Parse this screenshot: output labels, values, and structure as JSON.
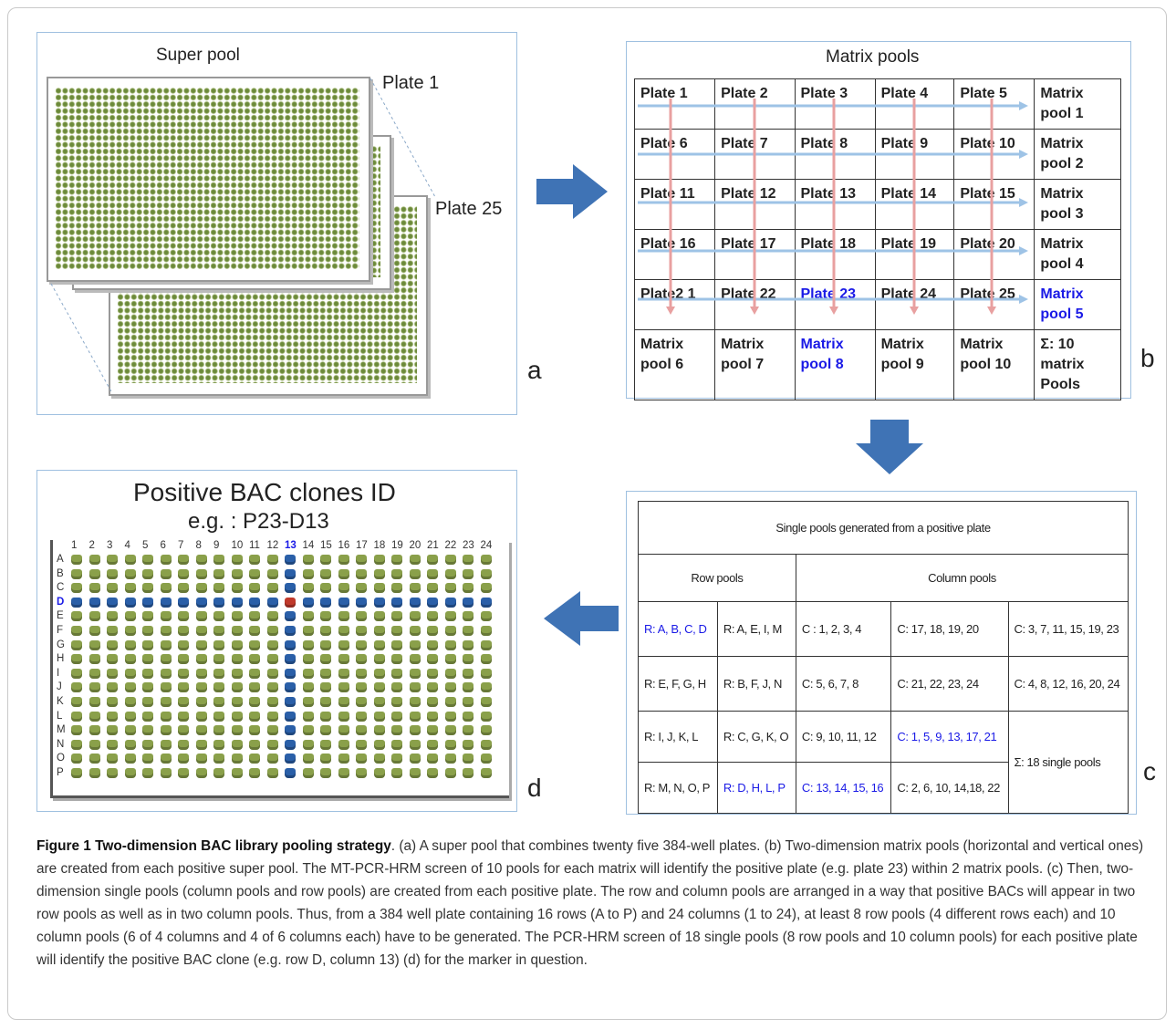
{
  "panel_a": {
    "title": "Super pool",
    "plate_first": "Plate 1",
    "plate_last": "Plate 25",
    "letter": "a"
  },
  "panel_b": {
    "title": "Matrix pools",
    "letter": "b",
    "rows": [
      [
        "Plate 1",
        "Plate 2",
        "Plate 3",
        "Plate 4",
        "Plate 5",
        "Matrix pool 1"
      ],
      [
        "Plate 6",
        "Plate 7",
        "Plate 8",
        "Plate 9",
        "Plate 10",
        "Matrix pool 2"
      ],
      [
        "Plate 11",
        "Plate 12",
        "Plate 13",
        "Plate 14",
        "Plate 15",
        "Matrix pool 3"
      ],
      [
        "Plate 16",
        "Plate 17",
        "Plate 18",
        "Plate 19",
        "Plate 20",
        "Matrix pool 4"
      ],
      [
        "Plate2 1",
        "Plate 22",
        "Plate 23",
        "Plate 24",
        "Plate 25",
        "Matrix pool 5"
      ],
      [
        "Matrix pool 6",
        "Matrix pool 7",
        "Matrix pool 8",
        "Matrix pool 9",
        "Matrix pool 10",
        "Σ: 10 matrix Pools"
      ]
    ],
    "highlight_color": "#1a1ae6"
  },
  "panel_c": {
    "title": "Single pools generated from a positive plate",
    "letter": "c",
    "row_pools_header": "Row pools",
    "column_pools_header": "Column pools",
    "rows": [
      [
        "R: A, B, C, D",
        "R: A, E, I, M",
        "C : 1, 2, 3, 4",
        "C: 17, 18, 19, 20",
        "C: 3, 7, 11, 15, 19, 23"
      ],
      [
        "R: E, F, G, H",
        "R: B, F, J, N",
        "C: 5, 6, 7, 8",
        "C: 21, 22, 23, 24",
        "C: 4, 8, 12, 16, 20, 24"
      ],
      [
        "R: I, J, K, L",
        "R: C, G, K, O",
        "C: 9, 10, 11, 12",
        "C: 1, 5, 9, 13, 17, 21",
        "Σ: 18 single pools"
      ],
      [
        "R: M, N, O, P",
        "R: D, H, L, P",
        "C: 13, 14, 15, 16",
        "C: 2, 6, 10, 14,18, 22"
      ]
    ]
  },
  "panel_d": {
    "title": "Positive BAC clones ID",
    "subtitle": "e.g. : P23-D13",
    "letter": "d",
    "columns": [
      "1",
      "2",
      "3",
      "4",
      "5",
      "6",
      "7",
      "8",
      "9",
      "10",
      "11",
      "12",
      "13",
      "14",
      "15",
      "16",
      "17",
      "18",
      "19",
      "20",
      "21",
      "22",
      "23",
      "24"
    ],
    "rows": [
      "A",
      "B",
      "C",
      "D",
      "E",
      "F",
      "G",
      "H",
      "I",
      "J",
      "K",
      "L",
      "M",
      "N",
      "O",
      "P"
    ],
    "positive_row": "D",
    "positive_column": "13",
    "well_color": "#8aa04a",
    "positive_color": "#2a5fa8",
    "hit_color": "#c0392b"
  },
  "caption": {
    "label": "Figure 1 Two-dimension BAC library pooling strategy",
    "text": ". (a) A super pool that combines twenty five 384-well plates. (b) Two-dimension matrix pools (horizontal and vertical ones) are created from each positive super pool. The MT-PCR-HRM screen of 10 pools for each matrix will identify the positive plate (e.g. plate 23) within 2 matrix pools. (c) Then, two-dimension single pools (column pools and row pools) are created from each positive plate. The row and column pools are arranged in a way that positive BACs will appear in two row pools as well as in two column pools. Thus, from a 384 well plate containing 16 rows (A to P) and 24 columns (1 to 24), at least 8 row pools (4 different rows each) and 10 column pools (6 of 4 columns and 4 of 6 columns each) have to be generated. The PCR-HRM screen of 18 single pools (8 row pools and 10 column pools) for each positive plate will identify the positive BAC clone (e.g. row D, column 13) (d) for the marker in question."
  },
  "arrow_color": "#3f73b5"
}
